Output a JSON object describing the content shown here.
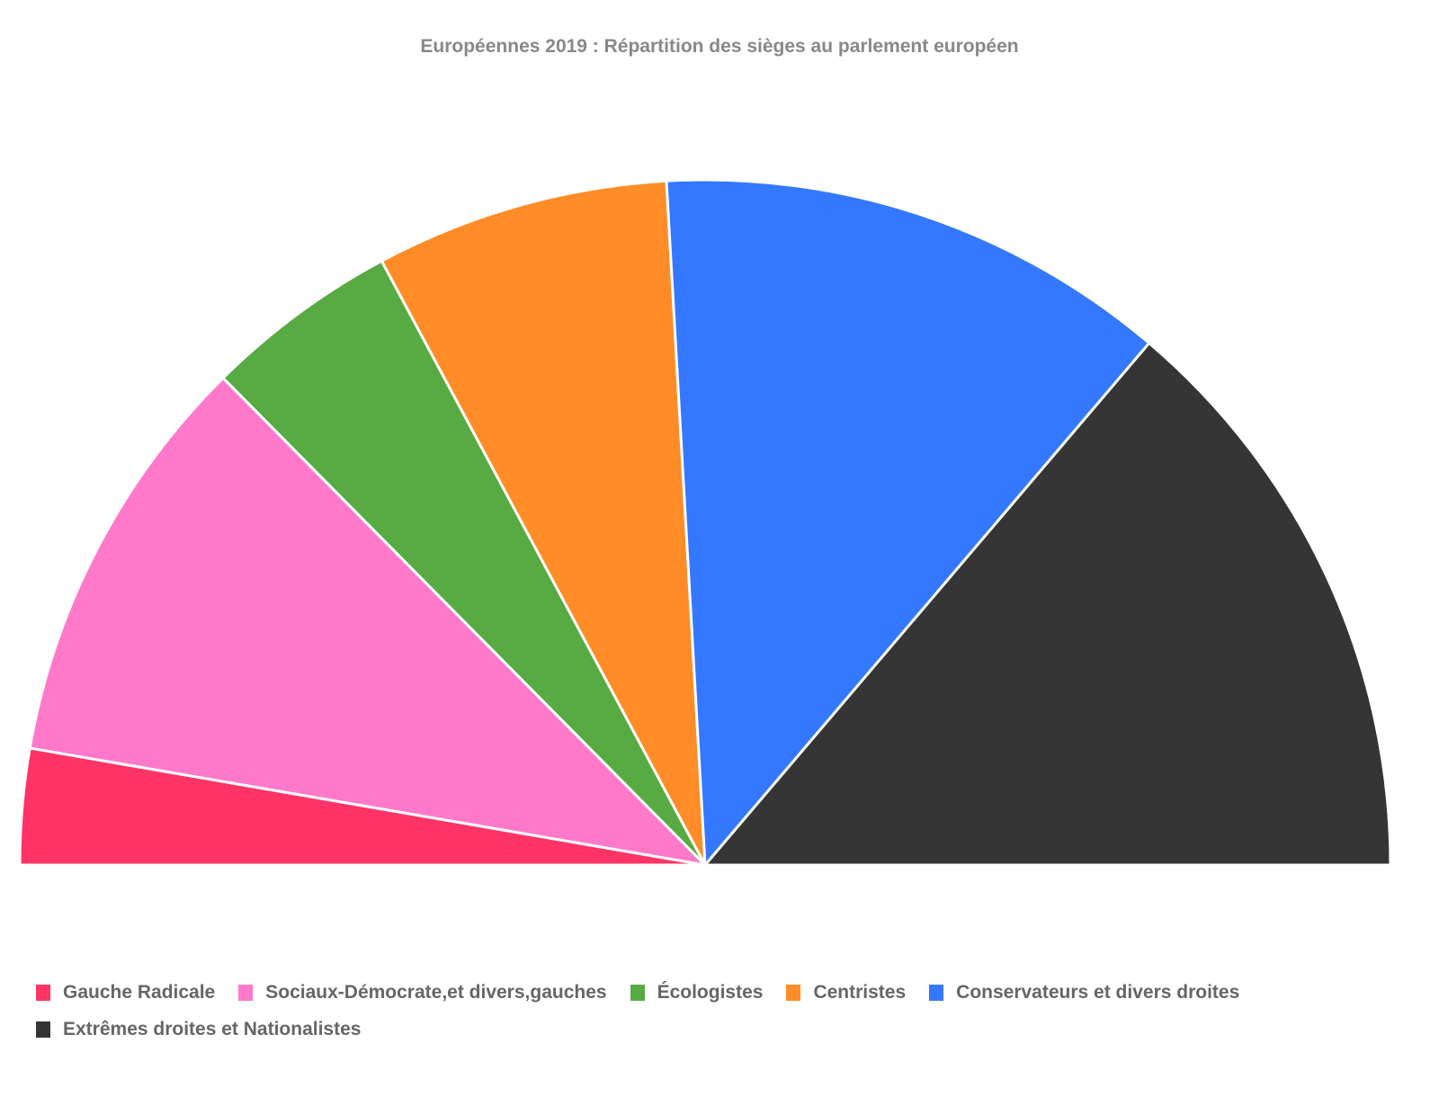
{
  "chart_data": {
    "type": "pie",
    "variant": "semicircle",
    "title": "Européennes 2019 : Répartition des sièges au parlement européen",
    "legend_position": "bottom",
    "series": [
      {
        "name": "Gauche Radicale",
        "value": 41,
        "color": "#ff3366"
      },
      {
        "name": "Sociaux-Démocrate,et divers,gauches",
        "value": 148,
        "color": "#ff79cb"
      },
      {
        "name": "Écologistes",
        "value": 69,
        "color": "#58aa43"
      },
      {
        "name": "Centristes",
        "value": 104,
        "color": "#ff8c26"
      },
      {
        "name": "Conservateurs et divers droites",
        "value": 182,
        "color": "#3478ff"
      },
      {
        "name": "Extrêmes droites et Nationalistes",
        "value": 207,
        "color": "#353535"
      }
    ]
  }
}
